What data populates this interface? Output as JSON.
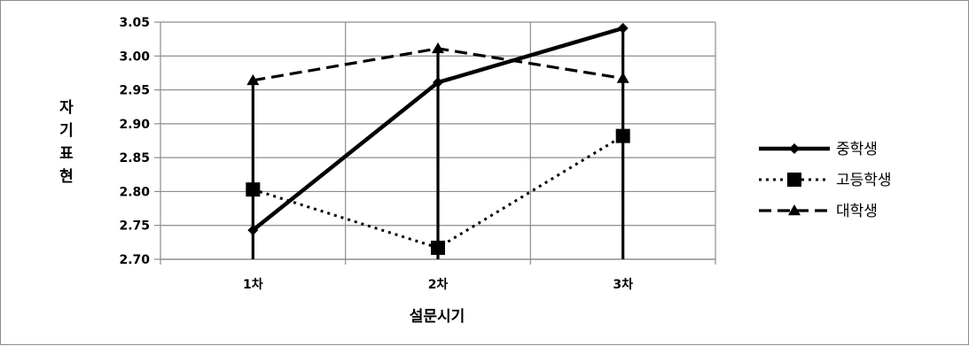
{
  "chart_data": {
    "type": "line",
    "categories": [
      "1차",
      "2차",
      "3차"
    ],
    "series": [
      {
        "name": "중학생",
        "values": [
          2.743,
          2.961,
          3.041
        ],
        "line_style": "solid",
        "marker": "diamond"
      },
      {
        "name": "고등학생",
        "values": [
          2.803,
          2.717,
          2.882
        ],
        "line_style": "dotted",
        "marker": "square"
      },
      {
        "name": "대학생",
        "values": [
          2.964,
          3.011,
          2.967
        ],
        "line_style": "dashed",
        "marker": "triangle"
      }
    ],
    "drop_lines": true,
    "title": "",
    "xlabel": "설문시기",
    "ylabel": "자기표현",
    "ylim": [
      2.7,
      3.05
    ],
    "yticks": [
      "3.05",
      "3.00",
      "2.95",
      "2.90",
      "2.85",
      "2.80",
      "2.75",
      "2.70"
    ],
    "grid": true,
    "legend_position": "right",
    "colors": {
      "series": "#000000",
      "grid": "#8c8c8c",
      "background": "#ffffff"
    }
  }
}
